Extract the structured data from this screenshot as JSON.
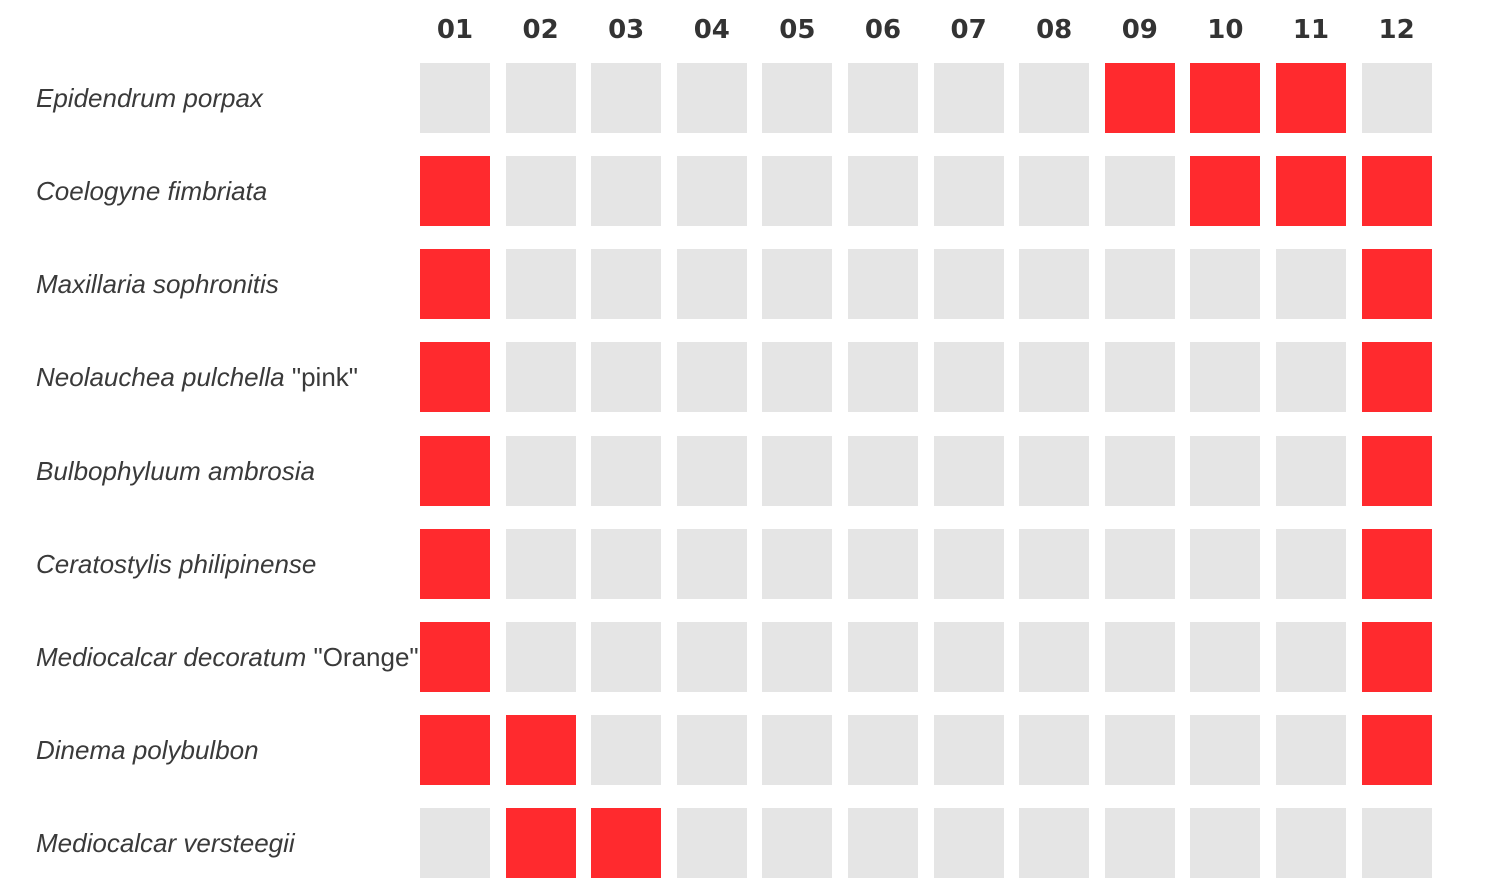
{
  "chart_data": {
    "type": "heatmap",
    "title": "",
    "xlabel": "",
    "ylabel": "",
    "months": [
      "01",
      "02",
      "03",
      "04",
      "05",
      "06",
      "07",
      "08",
      "09",
      "10",
      "11",
      "12"
    ],
    "rows": [
      {
        "species": "Epidendrum porpax",
        "variety": "",
        "values": [
          0,
          0,
          0,
          0,
          0,
          0,
          0,
          0,
          1,
          1,
          1,
          0
        ]
      },
      {
        "species": "Coelogyne fimbriata",
        "variety": "",
        "values": [
          1,
          0,
          0,
          0,
          0,
          0,
          0,
          0,
          0,
          1,
          1,
          1
        ]
      },
      {
        "species": "Maxillaria sophronitis",
        "variety": "",
        "values": [
          1,
          0,
          0,
          0,
          0,
          0,
          0,
          0,
          0,
          0,
          0,
          1
        ]
      },
      {
        "species": "Neolauchea pulchella",
        "variety": "\"pink\"",
        "values": [
          1,
          0,
          0,
          0,
          0,
          0,
          0,
          0,
          0,
          0,
          0,
          1
        ]
      },
      {
        "species": "Bulbophyluum ambrosia",
        "variety": "",
        "values": [
          1,
          0,
          0,
          0,
          0,
          0,
          0,
          0,
          0,
          0,
          0,
          1
        ]
      },
      {
        "species": "Ceratostylis philipinense",
        "variety": "",
        "values": [
          1,
          0,
          0,
          0,
          0,
          0,
          0,
          0,
          0,
          0,
          0,
          1
        ]
      },
      {
        "species": "Mediocalcar decoratum",
        "variety": "\"Orange\"",
        "values": [
          1,
          0,
          0,
          0,
          0,
          0,
          0,
          0,
          0,
          0,
          0,
          1
        ]
      },
      {
        "species": "Dinema polybulbon",
        "variety": "",
        "values": [
          1,
          1,
          0,
          0,
          0,
          0,
          0,
          0,
          0,
          0,
          0,
          1
        ]
      },
      {
        "species": "Mediocalcar versteegii",
        "variety": "",
        "values": [
          0,
          1,
          1,
          0,
          0,
          0,
          0,
          0,
          0,
          0,
          0,
          0
        ]
      }
    ],
    "colors": {
      "active": "#ff2a2e",
      "inactive": "#e5e5e5",
      "label_text": "#3a3a3a",
      "month_text": "#333333"
    }
  }
}
